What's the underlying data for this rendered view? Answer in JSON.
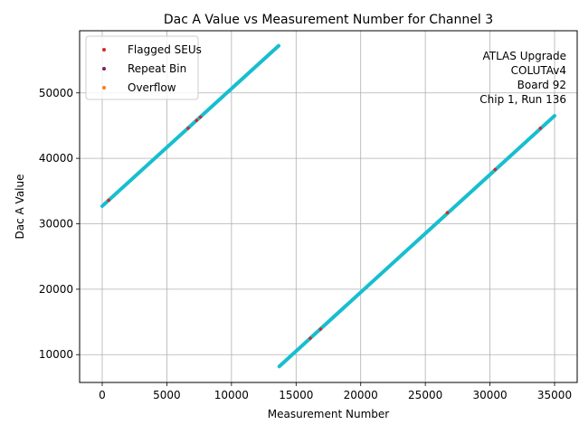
{
  "chart_data": {
    "type": "scatter",
    "title": "Dac A Value vs Measurement Number for Channel 3",
    "xlabel": "Measurement Number",
    "ylabel": "Dac A Value",
    "xlim": [
      -1750,
      36750
    ],
    "ylim": [
      5750,
      59500
    ],
    "xticks": [
      0,
      5000,
      10000,
      15000,
      20000,
      25000,
      30000,
      35000
    ],
    "yticks": [
      10000,
      20000,
      30000,
      40000,
      50000
    ],
    "grid": true,
    "legend_position": "top-left",
    "series": [
      {
        "name": "",
        "color": "#17becf",
        "segments": [
          {
            "x": [
              0,
              13650
            ],
            "y": [
              32700,
              57200
            ]
          },
          {
            "x": [
              13700,
              35000
            ],
            "y": [
              8200,
              46500
            ]
          }
        ]
      },
      {
        "name": "Flagged SEUs",
        "color": "#d62728",
        "points": [
          {
            "x": 500,
            "y": 33600
          },
          {
            "x": 6650,
            "y": 44600
          },
          {
            "x": 7300,
            "y": 45800
          },
          {
            "x": 7600,
            "y": 46300
          },
          {
            "x": 16100,
            "y": 12500
          },
          {
            "x": 16900,
            "y": 13900
          },
          {
            "x": 26700,
            "y": 31700
          },
          {
            "x": 30400,
            "y": 38300
          },
          {
            "x": 33900,
            "y": 44600
          }
        ]
      },
      {
        "name": "Repeat Bin",
        "color": "#7b1e6b",
        "points": []
      },
      {
        "name": "Overflow",
        "color": "#ff7f0e",
        "points": []
      }
    ],
    "annotation": [
      "ATLAS Upgrade",
      "COLUTAv4",
      "Board 92",
      "Chip 1, Run 136"
    ]
  }
}
